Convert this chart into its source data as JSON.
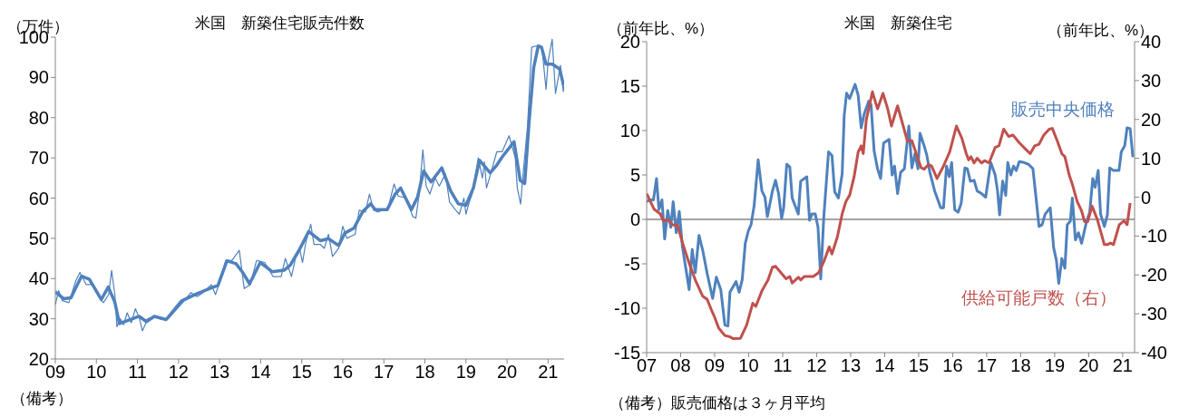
{
  "chart_data": [
    {
      "type": "line",
      "title": "米国　新築住宅販売件数",
      "ylabel": "（万件）",
      "annotations": [
        "（備考）"
      ],
      "xlim": [
        2009,
        2021.39
      ],
      "xticks": [
        {
          "value": 2009,
          "label": "09"
        },
        {
          "value": 2010,
          "label": "10"
        },
        {
          "value": 2011,
          "label": "11"
        },
        {
          "value": 2012,
          "label": "12"
        },
        {
          "value": 2013,
          "label": "13"
        },
        {
          "value": 2014,
          "label": "14"
        },
        {
          "value": 2015,
          "label": "15"
        },
        {
          "value": 2016,
          "label": "16"
        },
        {
          "value": 2017,
          "label": "17"
        },
        {
          "value": 2018,
          "label": "18"
        },
        {
          "value": 2019,
          "label": "19"
        },
        {
          "value": 2020,
          "label": "20"
        },
        {
          "value": 2021,
          "label": "21"
        }
      ],
      "ylim": [
        20,
        100
      ],
      "yticks": [
        20,
        30,
        40,
        50,
        60,
        70,
        80,
        90,
        100
      ],
      "grid": false,
      "legend": false,
      "marker": "none",
      "series": [
        {
          "color": "#4f81bd",
          "x": [
            2009.0,
            2009.08,
            2009.17,
            2009.33,
            2009.5,
            2009.6,
            2009.75,
            2009.9,
            2010.08,
            2010.17,
            2010.3,
            2010.37,
            2010.45,
            2010.5,
            2010.58,
            2010.66,
            2010.75,
            2010.85,
            2010.95,
            2011.05,
            2011.12,
            2011.25,
            2011.4,
            2011.55,
            2011.75,
            2012.1,
            2012.3,
            2012.45,
            2012.6,
            2012.8,
            2012.9,
            2013.0,
            2013.15,
            2013.3,
            2013.48,
            2013.6,
            2013.75,
            2013.9,
            2014.1,
            2014.3,
            2014.5,
            2014.6,
            2014.75,
            2014.87,
            2014.95,
            2015.02,
            2015.1,
            2015.22,
            2015.3,
            2015.45,
            2015.55,
            2015.65,
            2015.75,
            2015.9,
            2016.0,
            2016.1,
            2016.3,
            2016.4,
            2016.55,
            2016.65,
            2016.75,
            2016.85,
            2017.1,
            2017.25,
            2017.35,
            2017.55,
            2017.7,
            2017.78,
            2017.86,
            2017.95,
            2018.03,
            2018.12,
            2018.25,
            2018.35,
            2018.5,
            2018.6,
            2018.75,
            2018.84,
            2018.95,
            2019.0,
            2019.08,
            2019.15,
            2019.3,
            2019.4,
            2019.45,
            2019.5,
            2019.6,
            2019.75,
            2019.88,
            2020.05,
            2020.2,
            2020.25,
            2020.33,
            2020.4,
            2020.5,
            2020.6,
            2020.7,
            2020.85,
            2020.95,
            2021.0,
            2021.1,
            2021.18,
            2021.3,
            2021.37,
            2021.39
          ],
          "values": [
            33.5,
            37,
            34.5,
            34,
            39.5,
            41.5,
            38.5,
            38.5,
            35,
            34,
            36,
            42,
            36,
            28,
            30,
            28.5,
            31.5,
            29,
            32.5,
            30,
            27,
            30,
            30.5,
            30,
            30,
            34,
            36.5,
            35.5,
            36.5,
            38.5,
            36,
            39,
            44.5,
            44.5,
            47,
            37.5,
            38.5,
            44.5,
            44,
            40.5,
            40.5,
            45,
            40.5,
            46,
            47.3,
            44,
            49,
            53.5,
            48.5,
            48.5,
            47.5,
            51,
            45.5,
            47.5,
            53,
            50,
            51,
            57,
            56.5,
            61,
            57,
            56.5,
            57.5,
            63.5,
            60.5,
            60,
            55.5,
            55,
            61,
            72,
            63,
            61,
            65,
            63,
            66,
            59,
            57,
            56,
            60,
            56,
            59,
            61,
            70,
            65,
            69,
            62.5,
            66,
            71.5,
            71.5,
            75.5,
            70,
            62.5,
            58.5,
            67,
            78,
            97.5,
            97.8,
            97.5,
            87,
            94,
            99.5,
            86,
            93,
            86.5,
            88
          ]
        },
        {
          "color": "#4f81bd",
          "x": [
            2009.0,
            2009.2,
            2009.38,
            2009.64,
            2009.83,
            2010.12,
            2010.29,
            2010.45,
            2010.56,
            2010.82,
            2011.04,
            2011.22,
            2011.41,
            2011.7,
            2012.07,
            2012.44,
            2012.81,
            2012.96,
            2013.18,
            2013.4,
            2013.55,
            2013.73,
            2013.99,
            2014.28,
            2014.58,
            2014.72,
            2014.94,
            2015.17,
            2015.46,
            2015.65,
            2015.9,
            2016.05,
            2016.27,
            2016.49,
            2016.68,
            2016.79,
            2017.08,
            2017.27,
            2017.41,
            2017.67,
            2017.82,
            2017.97,
            2018.15,
            2018.41,
            2018.63,
            2018.81,
            2019.0,
            2019.18,
            2019.33,
            2019.59,
            2019.73,
            2019.88,
            2020.17,
            2020.32,
            2020.43,
            2020.54,
            2020.65,
            2020.76,
            2020.84,
            2020.95,
            2021.1,
            2021.28,
            2021.38
          ],
          "values": [
            36.7,
            35,
            35.2,
            40.6,
            39.8,
            34.8,
            37.9,
            34.1,
            28.8,
            29.8,
            30.6,
            29.3,
            30.6,
            29.8,
            34.4,
            36.2,
            37.7,
            38.3,
            44.4,
            43.7,
            41.7,
            38.7,
            44,
            41.7,
            42.1,
            43.3,
            47.1,
            51.7,
            49.4,
            49.9,
            48.2,
            51.3,
            52.5,
            56.7,
            58.6,
            57.1,
            57.1,
            60.9,
            62.5,
            57.1,
            60.2,
            66.7,
            64,
            67.5,
            61.7,
            58.6,
            58.2,
            62.5,
            69.4,
            66.3,
            67.9,
            70.2,
            74,
            64.4,
            63.6,
            79.4,
            92.5,
            97.8,
            97.5,
            93.3,
            93.3,
            92.1,
            87.9
          ]
        }
      ]
    },
    {
      "type": "line",
      "title": "米国　新築住宅",
      "ylabel": "（前年比、%）",
      "y2label": "（前年比、%）",
      "annotations": [
        "（備考）販売価格は３ヶ月平均"
      ],
      "xlim": [
        2007,
        2021.35
      ],
      "xticks": [
        {
          "value": 2007,
          "label": "07"
        },
        {
          "value": 2008,
          "label": "08"
        },
        {
          "value": 2009,
          "label": "09"
        },
        {
          "value": 2010,
          "label": "10"
        },
        {
          "value": 2011,
          "label": "11"
        },
        {
          "value": 2012,
          "label": "12"
        },
        {
          "value": 2013,
          "label": "13"
        },
        {
          "value": 2014,
          "label": "14"
        },
        {
          "value": 2015,
          "label": "15"
        },
        {
          "value": 2016,
          "label": "16"
        },
        {
          "value": 2017,
          "label": "17"
        },
        {
          "value": 2018,
          "label": "18"
        },
        {
          "value": 2019,
          "label": "19"
        },
        {
          "value": 2020,
          "label": "20"
        },
        {
          "value": 2021,
          "label": "21"
        }
      ],
      "ylim": [
        -15,
        20
      ],
      "yticks": [
        -15,
        -10,
        -5,
        0,
        5,
        10,
        15,
        20
      ],
      "y2lim": [
        -40,
        40
      ],
      "y2ticks": [
        -40,
        -30,
        -20,
        -10,
        0,
        10,
        20,
        30,
        40
      ],
      "grid": false,
      "legend": false,
      "marker": "none",
      "ref_lines": [
        {
          "axis": "y",
          "value": 0,
          "color": "#868686"
        }
      ],
      "series": [
        {
          "name": "販売中央価格",
          "color": "#4f81bd",
          "x": [
            2007.0,
            2007.09,
            2007.2,
            2007.29,
            2007.36,
            2007.45,
            2007.53,
            2007.62,
            2007.71,
            2007.78,
            2007.87,
            2007.96,
            2008.05,
            2008.25,
            2008.34,
            2008.43,
            2008.54,
            2008.65,
            2008.78,
            2008.94,
            2009.05,
            2009.18,
            2009.3,
            2009.39,
            2009.45,
            2009.63,
            2009.72,
            2009.81,
            2009.9,
            2009.99,
            2010.07,
            2010.16,
            2010.28,
            2010.39,
            2010.48,
            2010.55,
            2010.7,
            2010.79,
            2010.88,
            2010.97,
            2011.03,
            2011.12,
            2011.21,
            2011.28,
            2011.46,
            2011.53,
            2011.71,
            2011.79,
            2011.86,
            2011.96,
            2012.04,
            2012.12,
            2012.21,
            2012.35,
            2012.45,
            2012.53,
            2012.64,
            2012.75,
            2012.81,
            2012.88,
            2012.97,
            2013.13,
            2013.22,
            2013.31,
            2013.4,
            2013.53,
            2013.6,
            2013.69,
            2013.79,
            2013.88,
            2013.97,
            2014.13,
            2014.22,
            2014.29,
            2014.38,
            2014.47,
            2014.58,
            2014.71,
            2014.8,
            2014.89,
            2014.98,
            2015.04,
            2015.16,
            2015.24,
            2015.33,
            2015.47,
            2015.65,
            2015.73,
            2015.82,
            2015.9,
            2015.97,
            2016.06,
            2016.16,
            2016.25,
            2016.36,
            2016.43,
            2016.52,
            2016.63,
            2016.72,
            2016.85,
            2016.97,
            2017.12,
            2017.25,
            2017.32,
            2017.38,
            2017.47,
            2017.56,
            2017.62,
            2017.71,
            2017.79,
            2017.87,
            2017.96,
            2018.1,
            2018.23,
            2018.36,
            2018.45,
            2018.54,
            2018.63,
            2018.72,
            2018.87,
            2018.97,
            2019.05,
            2019.12,
            2019.21,
            2019.3,
            2019.37,
            2019.46,
            2019.52,
            2019.61,
            2019.7,
            2019.79,
            2019.94,
            2020.03,
            2020.12,
            2020.19,
            2020.28,
            2020.35,
            2020.46,
            2020.55,
            2020.62,
            2020.73,
            2020.89,
            2020.96,
            2021.06,
            2021.13,
            2021.22,
            2021.3
          ],
          "values": [
            2.0,
            2.2,
            2.2,
            4.6,
            1.1,
            2.2,
            -2.2,
            1.0,
            -0.9,
            2.0,
            -1.5,
            0.9,
            -3.0,
            -7.9,
            -3.4,
            -6.0,
            -1.8,
            -3.5,
            -6.1,
            -8.9,
            -6.5,
            -7.9,
            -11.9,
            -12.0,
            -8.2,
            -7.0,
            -8.2,
            -6.8,
            -2.7,
            -1.3,
            -0.6,
            1.5,
            6.7,
            3.2,
            2.5,
            0.3,
            3.2,
            4.4,
            2.9,
            0.1,
            1.3,
            6.2,
            5.9,
            2.4,
            0.6,
            4.3,
            4.8,
            -0.1,
            0.6,
            0.6,
            -0.9,
            -6.7,
            0.3,
            7.6,
            7.2,
            3.1,
            2.4,
            5.1,
            11.7,
            14.2,
            13.6,
            15.2,
            14.0,
            10.3,
            11.9,
            13.3,
            12.9,
            7.7,
            5.7,
            4.6,
            8.6,
            9.0,
            5.0,
            6.0,
            2.9,
            5.3,
            5.7,
            10.5,
            5.8,
            7.4,
            5.7,
            9.7,
            8.3,
            7.2,
            5.3,
            3.2,
            1.3,
            1.3,
            6.0,
            4.8,
            6.4,
            1.1,
            0.8,
            1.8,
            5.8,
            5.7,
            4.3,
            4.4,
            3.2,
            2.9,
            2.5,
            6.4,
            5.0,
            3.2,
            0.5,
            4.3,
            2.7,
            6.4,
            5.0,
            6.0,
            5.5,
            6.5,
            6.4,
            6.2,
            5.7,
            2.5,
            -0.8,
            -0.6,
            0.6,
            1.3,
            -3.2,
            -4.6,
            -7.2,
            -4.4,
            -5.5,
            -0.6,
            -0.2,
            2.4,
            -2.3,
            -1.5,
            -2.7,
            -0.2,
            0.8,
            4.6,
            3.6,
            5.5,
            0.6,
            -0.8,
            0.5,
            5.8,
            5.5,
            5.5,
            7.6,
            8.3,
            10.3,
            10.2,
            7.0
          ]
        },
        {
          "name": "供給可能戸数（右）",
          "color": "#c0504d",
          "axis": "y2",
          "x": [
            2007.0,
            2007.22,
            2007.4,
            2007.49,
            2007.64,
            2007.76,
            2007.91,
            2008.07,
            2008.25,
            2008.43,
            2008.65,
            2008.78,
            2008.89,
            2009.0,
            2009.12,
            2009.3,
            2009.45,
            2009.54,
            2009.76,
            2009.94,
            2010.12,
            2010.21,
            2010.39,
            2010.57,
            2010.7,
            2010.79,
            2011.1,
            2011.21,
            2011.28,
            2011.46,
            2011.53,
            2011.64,
            2011.9,
            2012.06,
            2012.21,
            2012.37,
            2012.45,
            2012.61,
            2012.75,
            2012.86,
            2012.97,
            2013.1,
            2013.22,
            2013.31,
            2013.37,
            2013.46,
            2013.64,
            2013.79,
            2013.95,
            2014.09,
            2014.2,
            2014.38,
            2014.67,
            2014.8,
            2014.93,
            2015.07,
            2015.16,
            2015.29,
            2015.38,
            2015.54,
            2015.73,
            2015.91,
            2016.11,
            2016.27,
            2016.4,
            2016.47,
            2016.54,
            2016.63,
            2016.72,
            2016.85,
            2016.94,
            2017.07,
            2017.25,
            2017.36,
            2017.5,
            2017.65,
            2017.77,
            2017.96,
            2018.14,
            2018.28,
            2018.41,
            2018.54,
            2018.68,
            2018.84,
            2018.93,
            2019.08,
            2019.21,
            2019.3,
            2019.43,
            2019.52,
            2019.66,
            2019.79,
            2019.88,
            2019.97,
            2020.1,
            2020.26,
            2020.46,
            2020.55,
            2020.64,
            2020.73,
            2020.9,
            2021.04,
            2021.13,
            2021.22
          ],
          "values": [
            0.9,
            -3.1,
            -4.3,
            -6.1,
            -5.9,
            -7.1,
            -7.3,
            -12.2,
            -17.0,
            -21.3,
            -25.5,
            -26.3,
            -28.7,
            -30.9,
            -33.7,
            -35.6,
            -35.9,
            -36.4,
            -36.3,
            -32.9,
            -27.3,
            -28.1,
            -24.1,
            -21.3,
            -18.0,
            -17.8,
            -21.0,
            -20.4,
            -22.1,
            -20.6,
            -21.3,
            -20.4,
            -20.4,
            -19.4,
            -16.6,
            -12.8,
            -14.6,
            -10.2,
            -4.3,
            -1.1,
            0.5,
            5.2,
            11.6,
            13.2,
            11.2,
            19.9,
            27.1,
            22.7,
            26.7,
            22.7,
            18.3,
            23.5,
            14.4,
            14.5,
            11.2,
            7.6,
            7.2,
            8.4,
            8.0,
            4.8,
            8.0,
            11.6,
            18.3,
            15.2,
            11.2,
            9.6,
            10.4,
            8.8,
            10.0,
            8.8,
            9.4,
            8.8,
            12.8,
            13.2,
            17.5,
            15.6,
            16.0,
            14.0,
            12.4,
            11.2,
            13.2,
            13.6,
            16.0,
            17.5,
            17.7,
            14.4,
            11.2,
            10.4,
            5.6,
            3.3,
            -1.1,
            -3.5,
            -6.3,
            -6.3,
            -2.3,
            -5.9,
            -12.2,
            -12.2,
            -11.8,
            -12.2,
            -7.1,
            -6.1,
            -7.1,
            -1.5
          ]
        }
      ]
    }
  ]
}
